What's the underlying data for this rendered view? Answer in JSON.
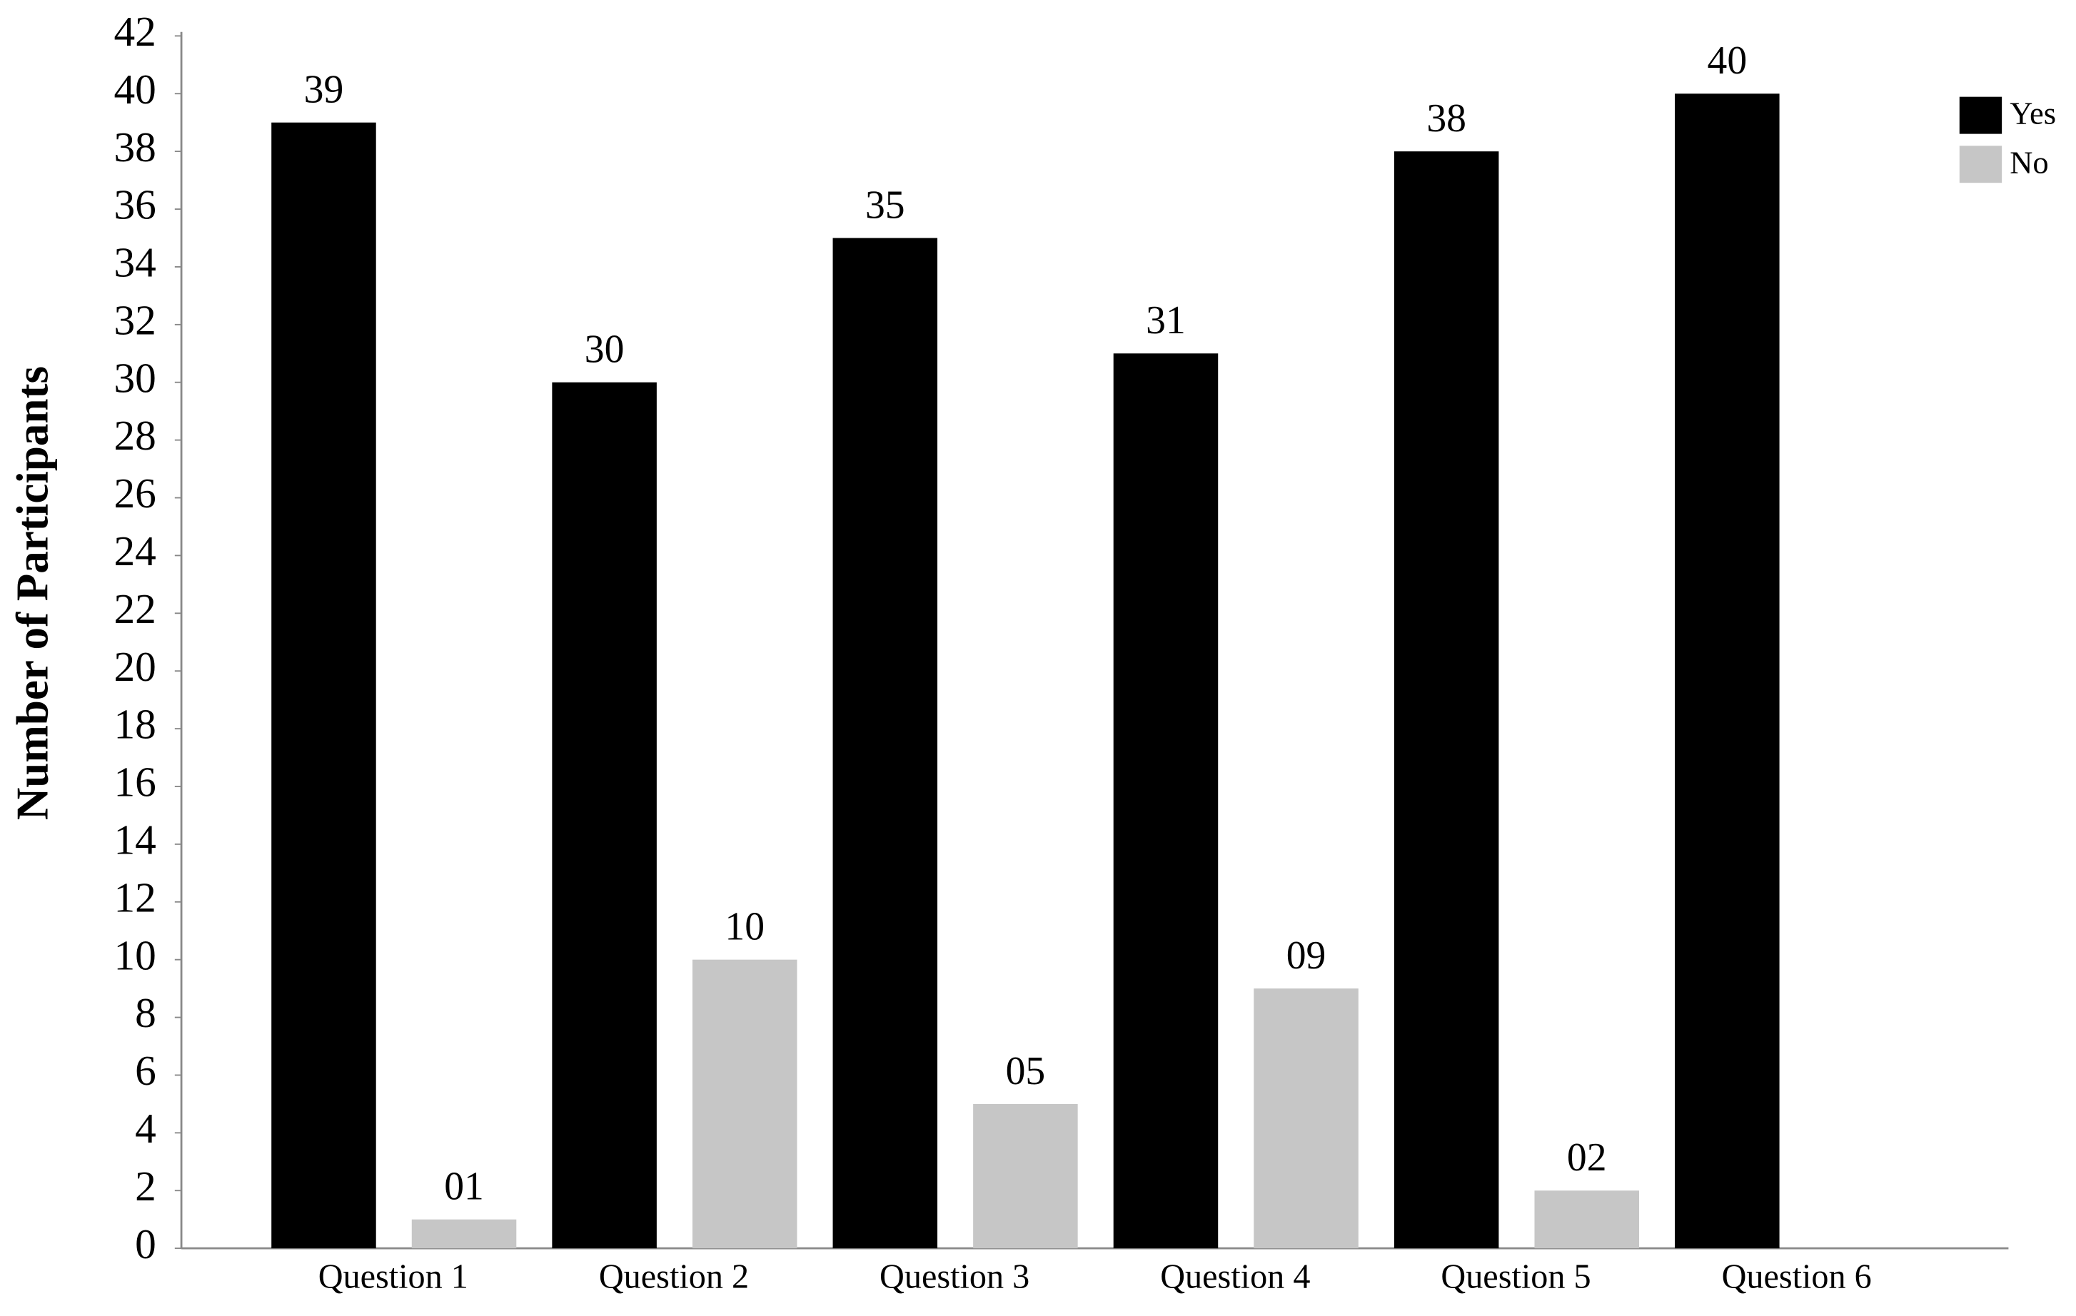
{
  "chart_data": {
    "type": "bar",
    "y_label": "Number of Participants",
    "categories": [
      "Question 1",
      "Question 2",
      "Question 3",
      "Question 4",
      "Question 5",
      "Question 6"
    ],
    "series": [
      {
        "name": "Yes",
        "color": "#000000",
        "values": [
          39,
          30,
          35,
          31,
          38,
          40
        ]
      },
      {
        "name": "No",
        "color": "#c6c6c6",
        "values": [
          1,
          10,
          5,
          9,
          2,
          null
        ],
        "value_labels": [
          "01",
          "10",
          "05",
          "09",
          "02",
          null
        ]
      }
    ],
    "ylim": [
      0,
      42
    ],
    "yticks": [
      0,
      2,
      4,
      6,
      8,
      10,
      12,
      14,
      16,
      18,
      20,
      22,
      24,
      26,
      28,
      30,
      32,
      34,
      36,
      38,
      40,
      42
    ],
    "grid": false,
    "legend": "top-right"
  }
}
